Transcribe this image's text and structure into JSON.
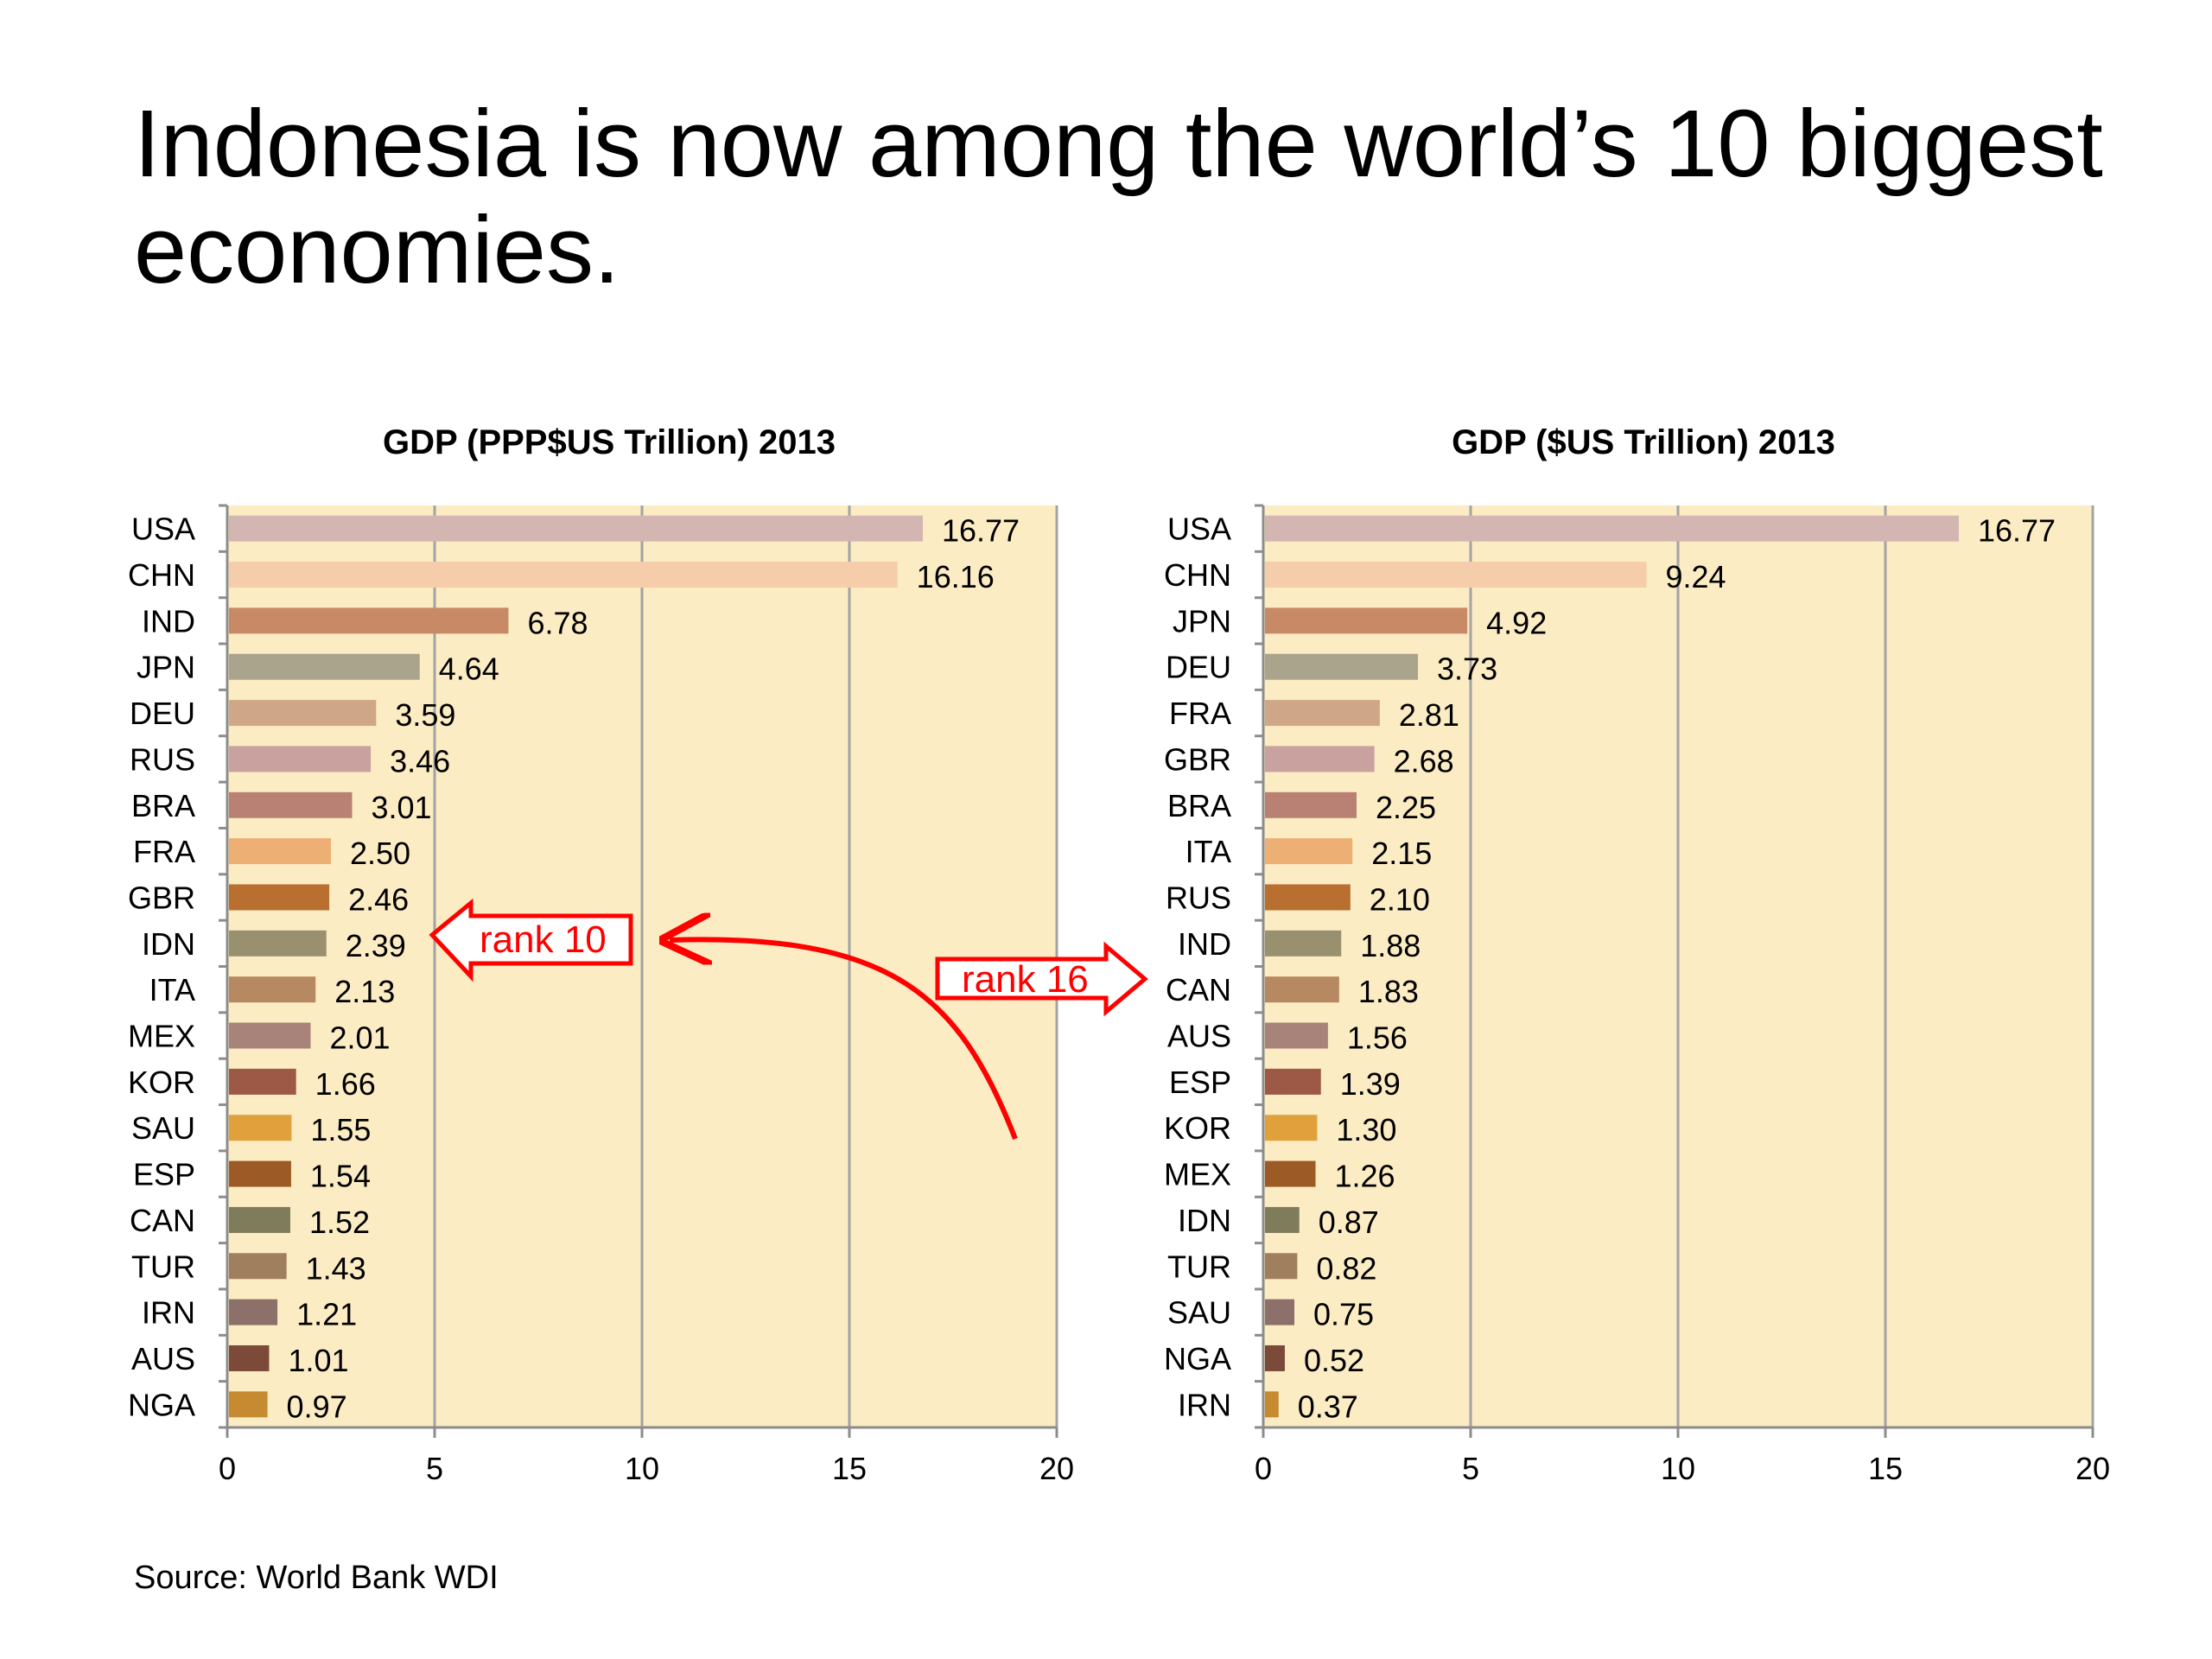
{
  "title": "Indonesia is now among the world’s 10 biggest economies.",
  "source": "Source: World Bank WDI",
  "annotations": {
    "left_arrow_label": "rank 10",
    "right_arrow_label": "rank 16",
    "color": "#ff0000"
  },
  "chart_data": [
    {
      "type": "bar",
      "orientation": "horizontal",
      "title": "GDP (PPP$US Trillion) 2013",
      "xlim": [
        0,
        20
      ],
      "xticks": [
        0,
        5,
        10,
        15,
        20
      ],
      "grid": true,
      "plot_background": "#fbecc4",
      "categories": [
        "USA",
        "CHN",
        "IND",
        "JPN",
        "DEU",
        "RUS",
        "BRA",
        "FRA",
        "GBR",
        "IDN",
        "ITA",
        "MEX",
        "KOR",
        "SAU",
        "ESP",
        "CAN",
        "TUR",
        "IRN",
        "AUS",
        "NGA"
      ],
      "values": [
        16.77,
        16.16,
        6.78,
        4.64,
        3.59,
        3.46,
        3.01,
        2.5,
        2.46,
        2.39,
        2.13,
        2.01,
        1.66,
        1.55,
        1.54,
        1.52,
        1.43,
        1.21,
        1.01,
        0.97
      ],
      "value_labels": [
        "16.77",
        "16.16",
        "6.78",
        "4.64",
        "3.59",
        "3.46",
        "3.01",
        "2.50",
        "2.46",
        "2.39",
        "2.13",
        "2.01",
        "1.66",
        "1.55",
        "1.54",
        "1.52",
        "1.43",
        "1.21",
        "1.01",
        "0.97"
      ],
      "colors": [
        "#d3b5b2",
        "#f5cdab",
        "#c88a66",
        "#aaa48c",
        "#cfa788",
        "#c9a2a0",
        "#b98173",
        "#edaf74",
        "#b86f2f",
        "#999070",
        "#b78963",
        "#a88379",
        "#9d5846",
        "#e0a03c",
        "#9c5b26",
        "#7f7c5b",
        "#a07f5e",
        "#8d706a",
        "#7c4a38",
        "#c68a30"
      ]
    },
    {
      "type": "bar",
      "orientation": "horizontal",
      "title": "GDP ($US Trillion) 2013",
      "xlim": [
        0,
        20
      ],
      "xticks": [
        0,
        5,
        10,
        15,
        20
      ],
      "grid": true,
      "plot_background": "#fbecc4",
      "categories": [
        "USA",
        "CHN",
        "JPN",
        "DEU",
        "FRA",
        "GBR",
        "BRA",
        "ITA",
        "RUS",
        "IND",
        "CAN",
        "AUS",
        "ESP",
        "KOR",
        "MEX",
        "IDN",
        "TUR",
        "SAU",
        "NGA",
        "IRN"
      ],
      "values": [
        16.77,
        9.24,
        4.92,
        3.73,
        2.81,
        2.68,
        2.25,
        2.15,
        2.1,
        1.88,
        1.83,
        1.56,
        1.39,
        1.3,
        1.26,
        0.87,
        0.82,
        0.75,
        0.52,
        0.37
      ],
      "value_labels": [
        "16.77",
        "9.24",
        "4.92",
        "3.73",
        "2.81",
        "2.68",
        "2.25",
        "2.15",
        "2.10",
        "1.88",
        "1.83",
        "1.56",
        "1.39",
        "1.30",
        "1.26",
        "0.87",
        "0.82",
        "0.75",
        "0.52",
        "0.37"
      ],
      "colors": [
        "#d3b5b2",
        "#f5cdab",
        "#c88a66",
        "#aaa48c",
        "#cfa788",
        "#c9a2a0",
        "#b98173",
        "#edaf74",
        "#b86f2f",
        "#999070",
        "#b78963",
        "#a88379",
        "#9d5846",
        "#e0a03c",
        "#9c5b26",
        "#7f7c5b",
        "#a07f5e",
        "#8d706a",
        "#7c4a38",
        "#c68a30"
      ]
    }
  ]
}
